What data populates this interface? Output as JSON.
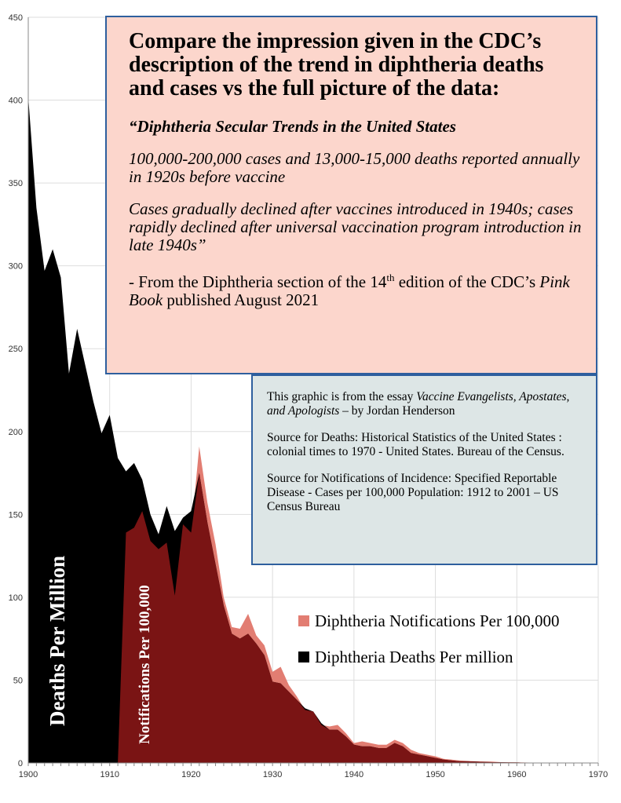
{
  "chart_data": {
    "type": "area",
    "xlim": [
      1900,
      1970
    ],
    "ylim": [
      0,
      450
    ],
    "x_ticks": [
      1900,
      1910,
      1920,
      1930,
      1940,
      1950,
      1960,
      1970
    ],
    "y_ticks": [
      0,
      50,
      100,
      150,
      200,
      250,
      300,
      350,
      400,
      450
    ],
    "grid": true,
    "legend_position": "bottom-right",
    "series": [
      {
        "name": "Diphtheria Deaths Per million",
        "color": "#000000",
        "x": [
          1900,
          1901,
          1902,
          1903,
          1904,
          1905,
          1906,
          1907,
          1908,
          1909,
          1910,
          1911,
          1912,
          1913,
          1914,
          1915,
          1916,
          1917,
          1918,
          1919,
          1920,
          1921,
          1922,
          1923,
          1924,
          1925,
          1926,
          1927,
          1928,
          1929,
          1930,
          1931,
          1932,
          1933,
          1934,
          1935,
          1936,
          1937,
          1938,
          1939,
          1940,
          1941,
          1942,
          1943,
          1944,
          1945,
          1946,
          1947,
          1948,
          1949,
          1950,
          1951,
          1952,
          1953,
          1954,
          1955,
          1956,
          1957,
          1958,
          1959,
          1960,
          1961,
          1962,
          1963,
          1964,
          1965,
          1966,
          1967,
          1968,
          1969,
          1970
        ],
        "values": [
          402,
          335,
          297,
          310,
          293,
          235,
          262,
          240,
          218,
          199,
          210,
          184,
          176,
          181,
          171,
          150,
          138,
          155,
          140,
          148,
          152,
          175,
          145,
          120,
          95,
          78,
          75,
          78,
          72,
          65,
          49,
          48,
          43,
          38,
          33,
          31,
          24,
          20,
          20,
          16,
          11,
          10,
          10,
          9,
          9,
          12,
          10,
          6,
          5,
          4,
          3,
          2,
          1.5,
          1,
          1,
          0.8,
          0.6,
          0.5,
          0.4,
          0.3,
          0.3,
          0.2,
          0.2,
          0.2,
          0.1,
          0.1,
          0.1,
          0.1,
          0.1,
          0.1,
          0.1
        ]
      },
      {
        "name": "Diphtheria Notifications Per 100,000",
        "color": "#e27d72",
        "x": [
          1911,
          1912,
          1913,
          1914,
          1915,
          1916,
          1917,
          1918,
          1919,
          1920,
          1921,
          1922,
          1923,
          1924,
          1925,
          1926,
          1927,
          1928,
          1929,
          1930,
          1931,
          1932,
          1933,
          1934,
          1935,
          1936,
          1937,
          1938,
          1939,
          1940,
          1941,
          1942,
          1943,
          1944,
          1945,
          1946,
          1947,
          1948,
          1949,
          1950,
          1951,
          1952,
          1953,
          1954,
          1955,
          1956,
          1957,
          1958,
          1959,
          1960,
          1961,
          1962,
          1963,
          1964,
          1965,
          1966,
          1967,
          1968,
          1969,
          1970
        ],
        "values": [
          0,
          139,
          142,
          152,
          134,
          129,
          133,
          101,
          144,
          139,
          191,
          157,
          132,
          100,
          82,
          81,
          90,
          77,
          71,
          55,
          58,
          47,
          40,
          32,
          31,
          23,
          22,
          23,
          18,
          12,
          13,
          12,
          11,
          11,
          14,
          12,
          8,
          6,
          5,
          4,
          2.5,
          2,
          1.5,
          1.2,
          1,
          0.9,
          0.8,
          0.5,
          0.5,
          0.4,
          0.3,
          0.2,
          0.2,
          0.2,
          0.1,
          0.1,
          0.1,
          0.1,
          0.1,
          0.1
        ]
      }
    ]
  },
  "box_main": {
    "title": "Compare the impression given in the CDC’s description of the trend in diphtheria deaths and cases vs the full picture of the data:",
    "quote_title": "“Diphtheria Secular Trends in the United States",
    "quote_line1": "100,000-200,000 cases and 13,000-15,000 deaths reported annually in 1920s before vaccine",
    "quote_line2": "Cases gradually declined after vaccines introduced in 1940s; cases rapidly declined after universal vaccination program introduction in late 1940s”",
    "attribution_pre": "- From the Diphtheria section of the 14",
    "attribution_sup": "th",
    "attribution_mid": " edition of the CDC’s ",
    "attribution_book": "Pink Book",
    "attribution_post": " published August 2021"
  },
  "box_sources": {
    "essay_pre": "This graphic is from the essay ",
    "essay_title": "Vaccine Evangelists, Apostates, and Apologists",
    "essay_post": " – by Jordan Henderson",
    "deaths_source": "Source for Deaths: Historical Statistics of the United States : colonial times to 1970 - United States. Bureau of the Census.",
    "notifications_source": "Source for Notifications of Incidence: Specified Reportable Disease - Cases per 100,000 Population: 1912 to 2001 – US Census Bureau"
  },
  "labels": {
    "deaths_axis": "Deaths Per Million",
    "notifications_axis": "Notifications Per 100,000"
  }
}
